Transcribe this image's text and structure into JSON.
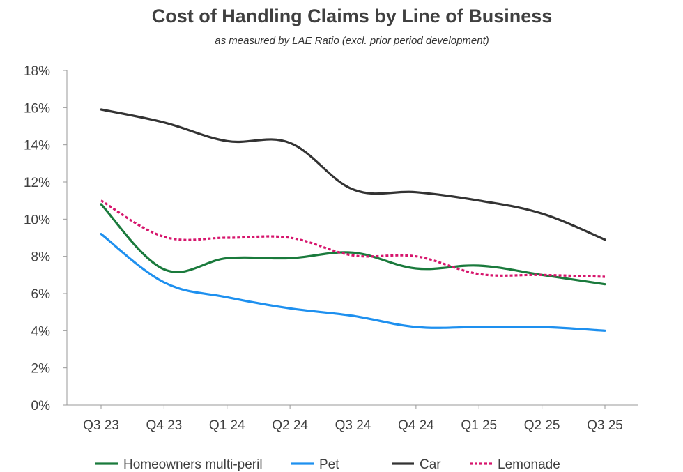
{
  "chart_data": {
    "type": "line",
    "title": "Cost of Handling Claims by Line of Business",
    "subtitle": "as measured by LAE Ratio (excl. prior period development)",
    "xlabel": "",
    "ylabel": "",
    "categories": [
      "Q3 23",
      "Q4 23",
      "Q1 24",
      "Q2 24",
      "Q3 24",
      "Q4 24",
      "Q1 25",
      "Q2 25",
      "Q3 25"
    ],
    "ylim": [
      0,
      18
    ],
    "yticks": [
      0,
      2,
      4,
      6,
      8,
      10,
      12,
      14,
      16,
      18
    ],
    "ytick_labels": [
      "0%",
      "2%",
      "4%",
      "6%",
      "8%",
      "10%",
      "12%",
      "14%",
      "16%",
      "18%"
    ],
    "grid": false,
    "legend_position": "bottom",
    "series": [
      {
        "name": "Homeowners multi-peril",
        "color": "#1a7a3c",
        "style": "solid",
        "values": [
          10.8,
          7.3,
          7.9,
          7.9,
          8.2,
          7.35,
          7.5,
          7.0,
          6.5
        ]
      },
      {
        "name": "Pet",
        "color": "#1e90ef",
        "style": "solid",
        "values": [
          9.2,
          6.6,
          5.8,
          5.2,
          4.8,
          4.2,
          4.2,
          4.2,
          4.0
        ]
      },
      {
        "name": "Car",
        "color": "#333333",
        "style": "solid",
        "values": [
          15.9,
          15.2,
          14.2,
          14.1,
          11.6,
          11.45,
          11.0,
          10.3,
          8.9
        ]
      },
      {
        "name": "Lemonade",
        "color": "#d6156c",
        "style": "dotted",
        "values": [
          11.0,
          9.05,
          9.0,
          9.0,
          8.05,
          8.0,
          7.05,
          7.0,
          6.9
        ]
      }
    ]
  }
}
